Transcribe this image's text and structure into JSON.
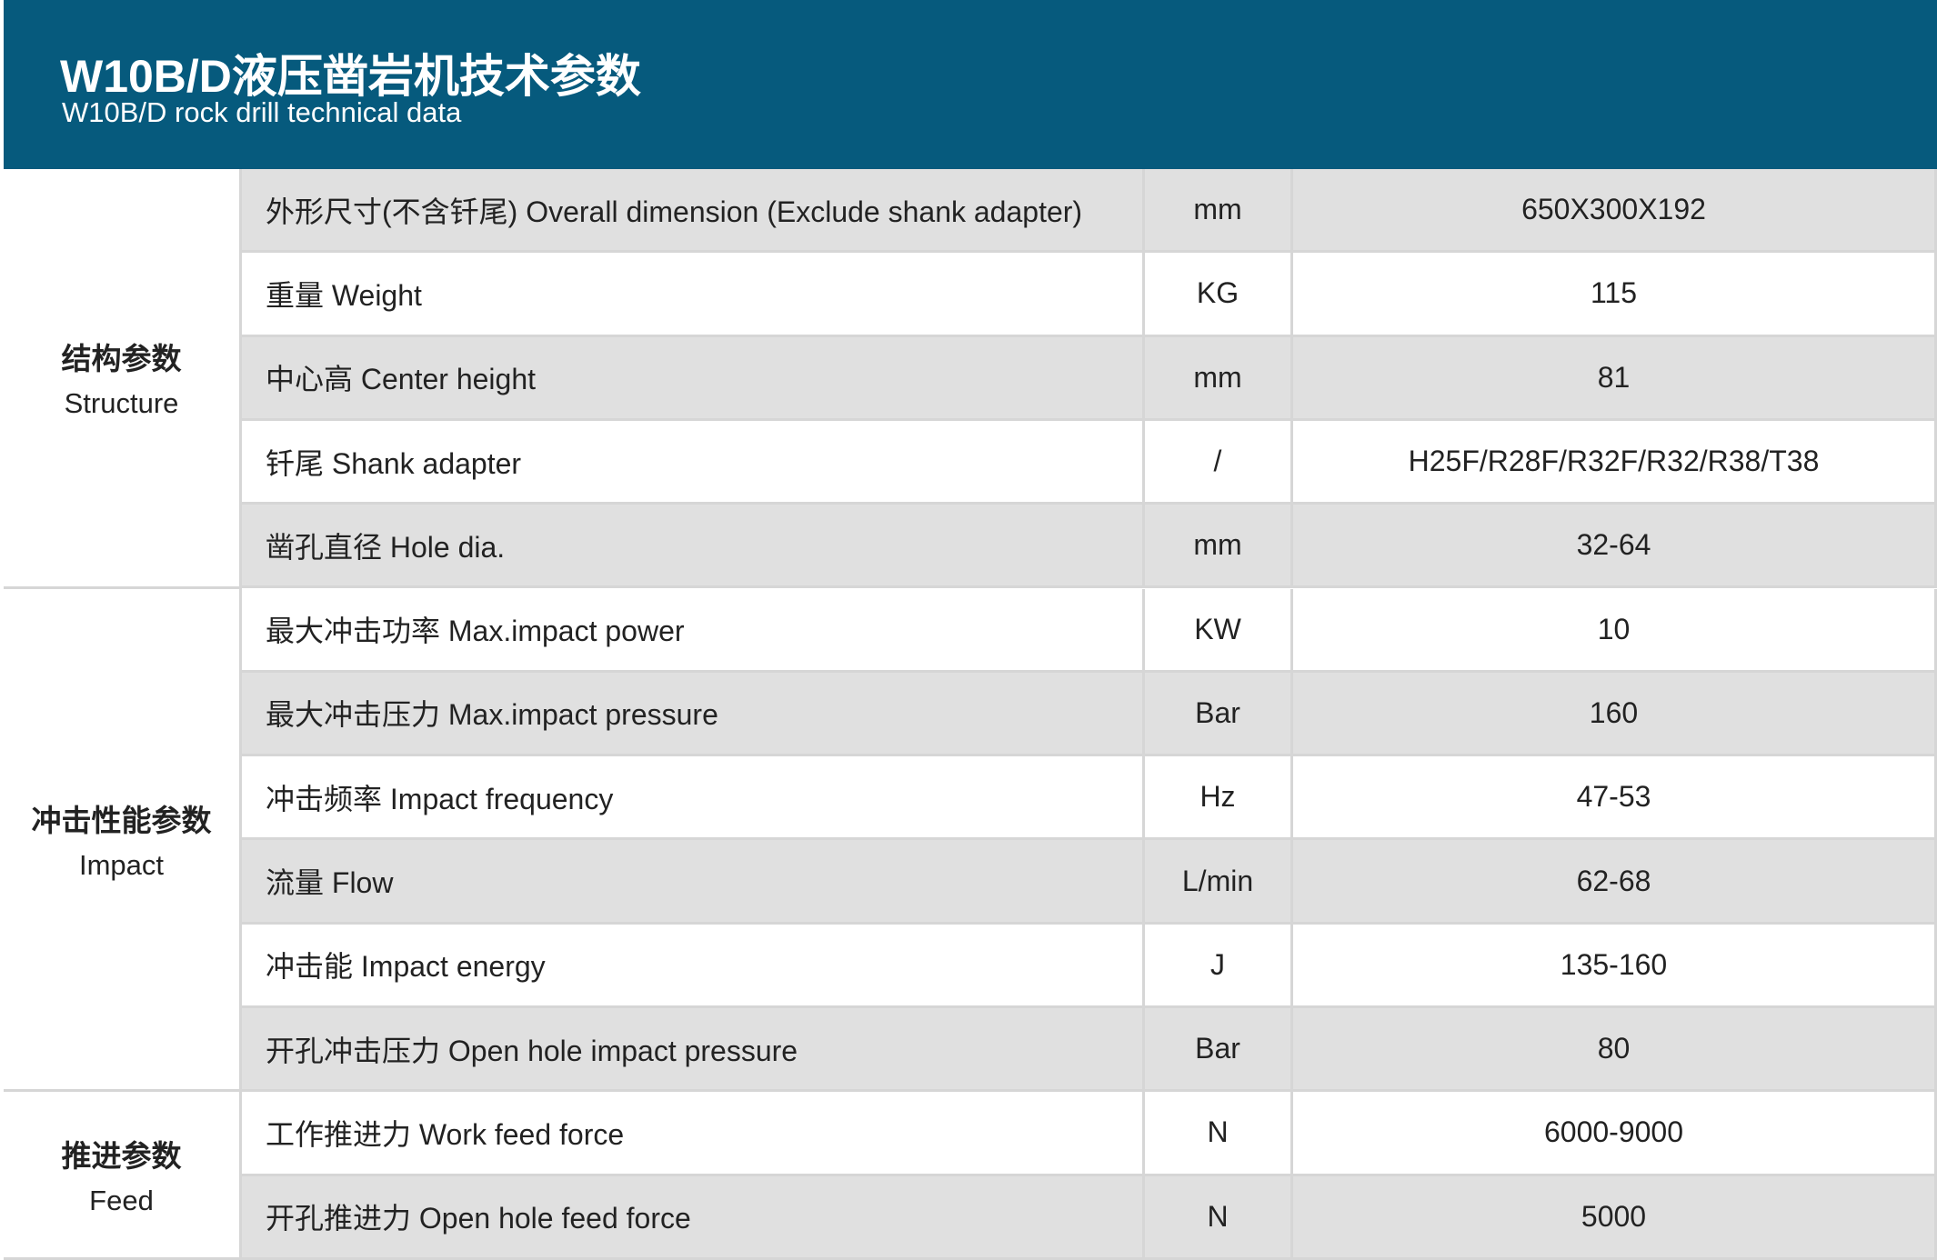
{
  "header": {
    "title": "W10B/D液压凿岩机技术参数",
    "subtitle": "W10B/D rock drill technical data"
  },
  "groups": [
    {
      "name_cn": "结构参数",
      "name_en": "Structure",
      "rows": [
        {
          "label": "外形尺寸(不含钎尾) Overall dimension (Exclude shank adapter)",
          "unit": "mm",
          "value": "650X300X192"
        },
        {
          "label": "重量 Weight",
          "unit": "KG",
          "value": "115"
        },
        {
          "label": "中心高 Center height",
          "unit": "mm",
          "value": "81"
        },
        {
          "label": "钎尾 Shank adapter",
          "unit": "/",
          "value": "H25F/R28F/R32F/R32/R38/T38"
        },
        {
          "label": "凿孔直径 Hole dia.",
          "unit": "mm",
          "value": "32-64"
        }
      ]
    },
    {
      "name_cn": "冲击性能参数",
      "name_en": "Impact",
      "rows": [
        {
          "label": "最大冲击功率 Max.impact power",
          "unit": "KW",
          "value": "10"
        },
        {
          "label": "最大冲击压力 Max.impact pressure",
          "unit": "Bar",
          "value": "160"
        },
        {
          "label": "冲击频率 Impact frequency",
          "unit": "Hz",
          "value": "47-53"
        },
        {
          "label": "流量 Flow",
          "unit": "L/min",
          "value": "62-68"
        },
        {
          "label": "冲击能 Impact energy",
          "unit": "J",
          "value": "135-160"
        },
        {
          "label": "开孔冲击压力 Open hole impact pressure",
          "unit": "Bar",
          "value": "80"
        }
      ]
    },
    {
      "name_cn": "推进参数",
      "name_en": "Feed",
      "rows": [
        {
          "label": "工作推进力 Work feed force",
          "unit": "N",
          "value": "6000-9000"
        },
        {
          "label": "开孔推进力 Open hole feed force",
          "unit": "N",
          "value": "5000"
        }
      ]
    }
  ]
}
